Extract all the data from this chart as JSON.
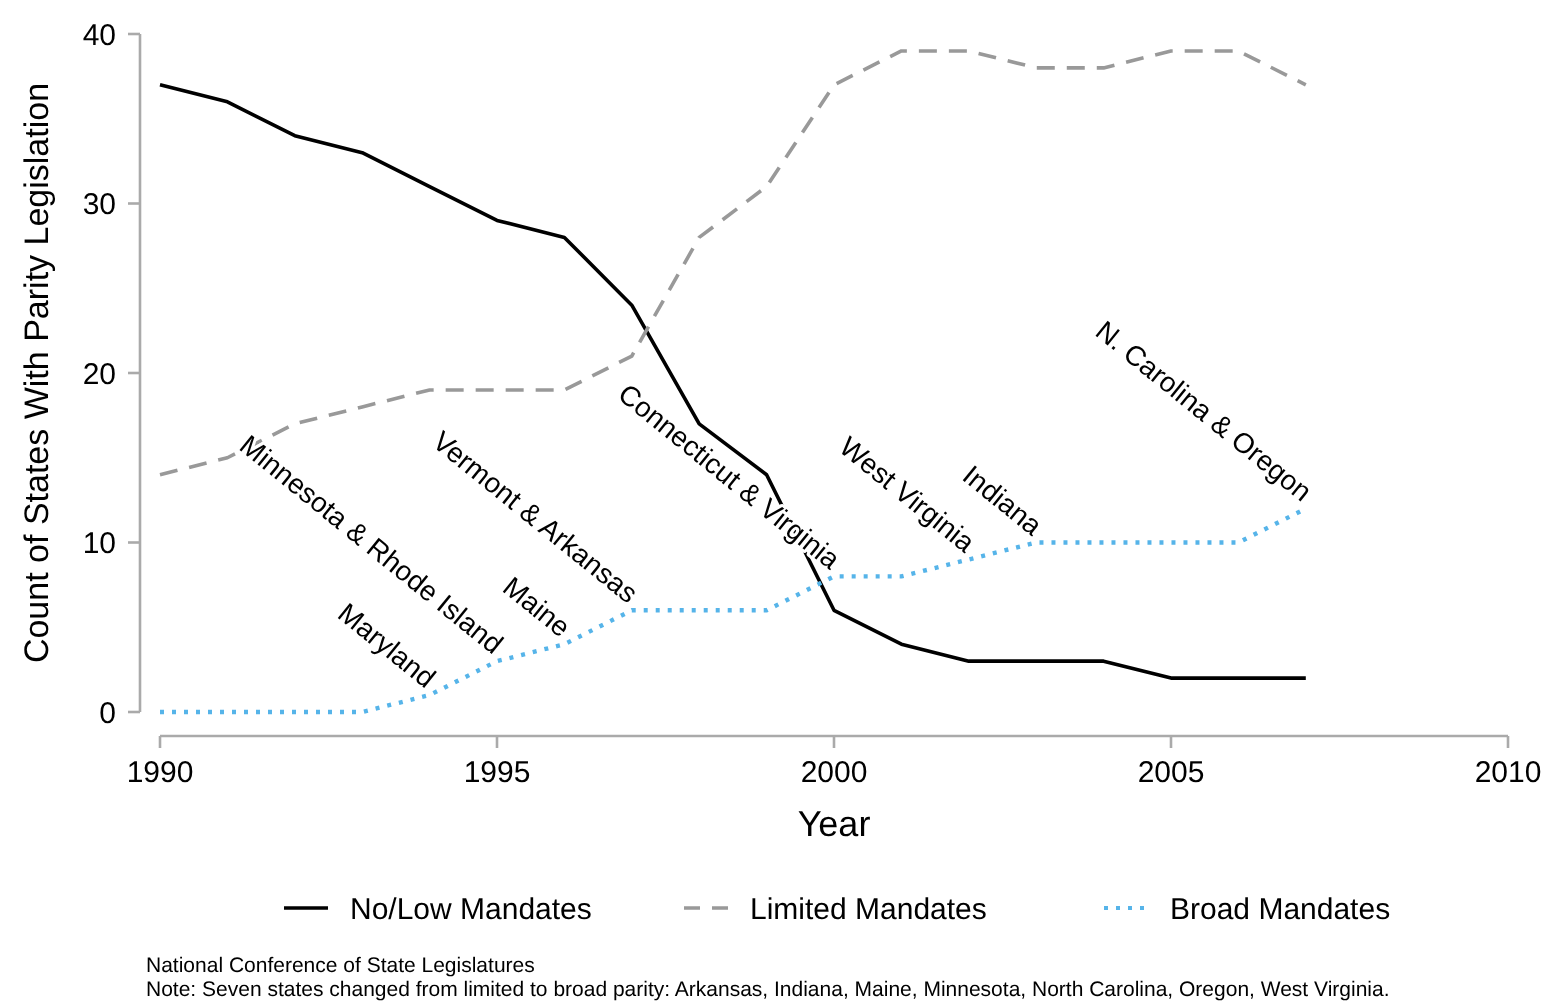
{
  "chart_data": {
    "type": "line",
    "xlabel": "Year",
    "ylabel": "Count of States With Parity Legislation",
    "x": [
      1990,
      1991,
      1992,
      1993,
      1994,
      1995,
      1996,
      1997,
      1998,
      1999,
      2000,
      2001,
      2002,
      2003,
      2004,
      2005,
      2006,
      2007
    ],
    "series": [
      {
        "name": "No/Low Mandates",
        "color": "#000000",
        "line_style": "solid",
        "values": [
          37,
          36,
          34,
          33,
          31,
          29,
          28,
          24,
          17,
          14,
          6,
          4,
          3,
          3,
          3,
          2,
          2,
          2
        ]
      },
      {
        "name": "Limited Mandates",
        "color": "#999999",
        "line_style": "dashed",
        "values": [
          14,
          15,
          17,
          18,
          19,
          19,
          19,
          21,
          28,
          31,
          37,
          39,
          39,
          38,
          38,
          39,
          39,
          37
        ]
      },
      {
        "name": "Broad Mandates",
        "color": "#56b4e9",
        "line_style": "dotted",
        "values": [
          0,
          0,
          0,
          0,
          1,
          3,
          4,
          6,
          6,
          6,
          8,
          8,
          9,
          10,
          10,
          10,
          10,
          12
        ]
      }
    ],
    "xlim": [
      1990,
      2010
    ],
    "xticks": [
      1990,
      1995,
      2000,
      2005,
      2010
    ],
    "ylim": [
      0,
      40
    ],
    "yticks": [
      0,
      10,
      20,
      30,
      40
    ],
    "grid": false,
    "legend": "bottom",
    "marker": "none",
    "annotations": [
      {
        "text": "Maryland",
        "x": 1994,
        "y": 1
      },
      {
        "text": "Minnesota & Rhode Island",
        "x": 1995,
        "y": 3
      },
      {
        "text": "Maine",
        "x": 1996,
        "y": 4
      },
      {
        "text": "Vermont & Arkansas",
        "x": 1997,
        "y": 6
      },
      {
        "text": "Connecticut & Virginia",
        "x": 2000,
        "y": 8
      },
      {
        "text": "West Virginia",
        "x": 2002,
        "y": 9
      },
      {
        "text": "Indiana",
        "x": 2003,
        "y": 10
      },
      {
        "text": "N. Carolina & Oregon",
        "x": 2007,
        "y": 12
      },
      "National Conference of State Legislatures",
      "Note: Seven states changed from limited to broad parity: Arkansas, Indiana, Maine, Minnesota, North Carolina, Oregon, West Virginia."
    ]
  }
}
